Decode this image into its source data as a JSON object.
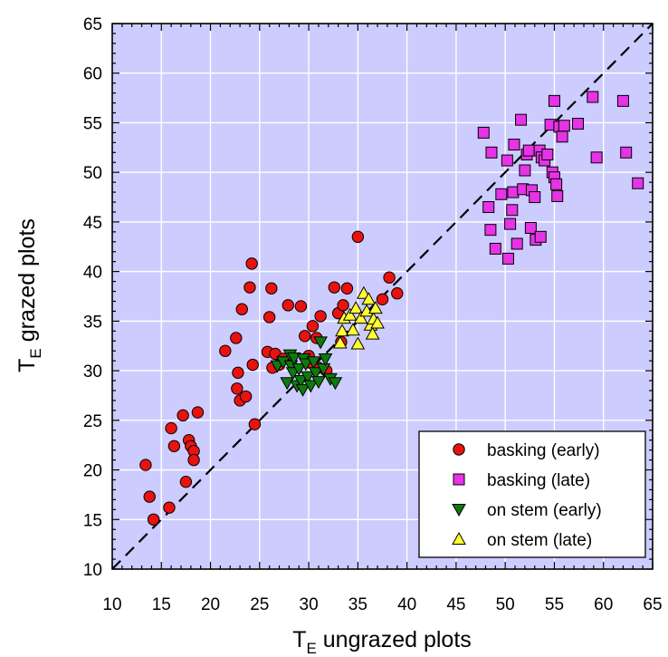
{
  "chart_data": {
    "type": "scatter",
    "title": "",
    "xlabel": {
      "main": "T",
      "sub": "E",
      "rest": " ungrazed plots"
    },
    "ylabel": {
      "main": "T",
      "sub": "E",
      "rest": " grazed plots"
    },
    "xlim": [
      10,
      65
    ],
    "ylim": [
      10,
      65
    ],
    "x_ticks": [
      "10",
      "15",
      "20",
      "25",
      "30",
      "35",
      "40",
      "45",
      "50",
      "55",
      "60",
      "65"
    ],
    "y_ticks": [
      "10",
      "15",
      "20",
      "25",
      "30",
      "35",
      "40",
      "45",
      "50",
      "55",
      "60",
      "65"
    ],
    "grid": true,
    "reference_line": "1:1 dashed",
    "legend_position": "bottom-right",
    "colors": {
      "plot_bg": "#CCCCFF",
      "grid": "#FFFFFF",
      "frame": "#000000"
    },
    "series": [
      {
        "name": "basking (early)",
        "marker": "circle",
        "color": "#E8130F",
        "points": [
          [
            13.4,
            20.5
          ],
          [
            13.8,
            17.3
          ],
          [
            14.2,
            15.0
          ],
          [
            15.8,
            16.2
          ],
          [
            16.0,
            24.2
          ],
          [
            16.3,
            22.4
          ],
          [
            17.2,
            25.5
          ],
          [
            17.5,
            18.8
          ],
          [
            17.8,
            23.0
          ],
          [
            18.0,
            22.4
          ],
          [
            18.3,
            21.9
          ],
          [
            18.3,
            21.0
          ],
          [
            18.7,
            25.8
          ],
          [
            21.5,
            32.0
          ],
          [
            22.6,
            33.3
          ],
          [
            22.7,
            28.2
          ],
          [
            22.8,
            29.8
          ],
          [
            23.0,
            27.0
          ],
          [
            23.2,
            36.2
          ],
          [
            23.6,
            27.4
          ],
          [
            24.0,
            38.4
          ],
          [
            24.2,
            40.8
          ],
          [
            24.3,
            30.6
          ],
          [
            24.5,
            24.6
          ],
          [
            25.8,
            31.9
          ],
          [
            26.0,
            35.4
          ],
          [
            26.2,
            38.3
          ],
          [
            26.3,
            30.3
          ],
          [
            26.6,
            31.7
          ],
          [
            27.0,
            30.6
          ],
          [
            27.4,
            31.2
          ],
          [
            27.9,
            36.6
          ],
          [
            29.2,
            36.5
          ],
          [
            29.6,
            33.5
          ],
          [
            30.0,
            31.5
          ],
          [
            30.2,
            30.8
          ],
          [
            30.4,
            34.5
          ],
          [
            30.8,
            33.3
          ],
          [
            31.0,
            30.3
          ],
          [
            31.2,
            35.5
          ],
          [
            31.8,
            30.0
          ],
          [
            32.6,
            38.4
          ],
          [
            33.0,
            35.8
          ],
          [
            33.3,
            32.9
          ],
          [
            33.5,
            36.6
          ],
          [
            33.9,
            38.3
          ],
          [
            35.0,
            43.5
          ],
          [
            37.5,
            37.2
          ],
          [
            38.2,
            39.4
          ],
          [
            39.0,
            37.8
          ]
        ]
      },
      {
        "name": "basking (late)",
        "marker": "square",
        "color": "#E633E6",
        "points": [
          [
            47.8,
            54.0
          ],
          [
            48.3,
            46.5
          ],
          [
            48.5,
            44.2
          ],
          [
            48.6,
            52.0
          ],
          [
            49.0,
            42.3
          ],
          [
            49.6,
            47.8
          ],
          [
            50.2,
            51.2
          ],
          [
            50.3,
            41.3
          ],
          [
            50.5,
            44.8
          ],
          [
            50.7,
            46.2
          ],
          [
            50.8,
            48.0
          ],
          [
            50.9,
            52.8
          ],
          [
            51.2,
            42.8
          ],
          [
            51.6,
            55.3
          ],
          [
            51.8,
            48.3
          ],
          [
            52.0,
            50.2
          ],
          [
            52.2,
            51.8
          ],
          [
            52.4,
            52.2
          ],
          [
            52.6,
            44.4
          ],
          [
            52.7,
            48.2
          ],
          [
            53.0,
            47.5
          ],
          [
            53.1,
            43.2
          ],
          [
            53.5,
            52.2
          ],
          [
            53.6,
            43.5
          ],
          [
            53.7,
            51.5
          ],
          [
            54.0,
            51.2
          ],
          [
            54.3,
            51.8
          ],
          [
            54.6,
            54.8
          ],
          [
            54.8,
            50.0
          ],
          [
            55.0,
            57.2
          ],
          [
            55.0,
            49.5
          ],
          [
            55.2,
            48.8
          ],
          [
            55.3,
            47.6
          ],
          [
            55.5,
            54.6
          ],
          [
            55.8,
            53.6
          ],
          [
            56.0,
            54.7
          ],
          [
            57.4,
            54.9
          ],
          [
            58.9,
            57.6
          ],
          [
            59.3,
            51.5
          ],
          [
            62.0,
            57.2
          ],
          [
            62.3,
            52.0
          ],
          [
            63.5,
            48.9
          ]
        ]
      },
      {
        "name": "on stem (early)",
        "marker": "triangle-down",
        "color": "#0E7A0E",
        "points": [
          [
            26.8,
            30.5
          ],
          [
            27.4,
            30.9
          ],
          [
            27.8,
            28.8
          ],
          [
            28.1,
            31.6
          ],
          [
            28.2,
            30.5
          ],
          [
            28.4,
            29.8
          ],
          [
            28.5,
            31.3
          ],
          [
            28.8,
            28.5
          ],
          [
            29.0,
            30.2
          ],
          [
            29.2,
            29.0
          ],
          [
            29.4,
            28.1
          ],
          [
            29.5,
            31.2
          ],
          [
            29.7,
            30.7
          ],
          [
            29.9,
            29.4
          ],
          [
            30.2,
            28.5
          ],
          [
            30.5,
            30.9
          ],
          [
            30.7,
            29.8
          ],
          [
            31.0,
            28.9
          ],
          [
            31.2,
            32.9
          ],
          [
            31.5,
            30.2
          ],
          [
            31.7,
            31.2
          ],
          [
            32.2,
            29.2
          ],
          [
            32.7,
            28.8
          ]
        ]
      },
      {
        "name": "on stem (late)",
        "marker": "triangle-up",
        "color": "#FFFF33",
        "points": [
          [
            33.2,
            32.8
          ],
          [
            33.4,
            34.0
          ],
          [
            33.6,
            35.3
          ],
          [
            34.2,
            35.6
          ],
          [
            34.5,
            34.1
          ],
          [
            34.8,
            36.3
          ],
          [
            35.0,
            32.7
          ],
          [
            35.3,
            35.3
          ],
          [
            35.6,
            37.8
          ],
          [
            35.9,
            36.0
          ],
          [
            36.1,
            37.2
          ],
          [
            36.3,
            34.6
          ],
          [
            36.5,
            33.7
          ],
          [
            36.6,
            35.2
          ],
          [
            36.8,
            36.3
          ],
          [
            37.0,
            34.8
          ]
        ]
      }
    ]
  }
}
